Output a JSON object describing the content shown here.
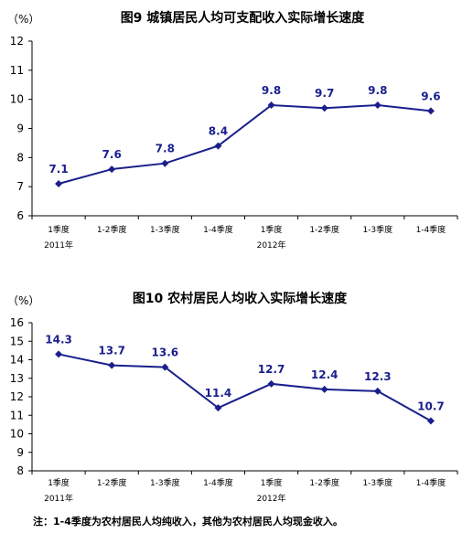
{
  "chart_data": [
    {
      "type": "line",
      "title": "图9  城镇居民人均可支配收入实际增长速度",
      "unit_label": "（%）",
      "categories": [
        "1季度",
        "1-2季度",
        "1-3季度",
        "1-4季度",
        "1季度",
        "1-2季度",
        "1-3季度",
        "1-4季度"
      ],
      "year_labels": [
        {
          "label": "2011年",
          "under_index": 0
        },
        {
          "label": "2012年",
          "under_index": 4
        }
      ],
      "series": [
        {
          "values": [
            7.1,
            7.6,
            7.8,
            8.4,
            9.8,
            9.7,
            9.8,
            9.6
          ]
        }
      ],
      "data_labels": [
        "7.1",
        "7.6",
        "7.8",
        "8.4",
        "9.8",
        "9.7",
        "9.8",
        "9.6"
      ],
      "ylim": [
        6,
        12
      ],
      "yticks": [
        6,
        7,
        8,
        9,
        10,
        11,
        12
      ],
      "color": "#1a1f8c",
      "grid": false,
      "legend": "none"
    },
    {
      "type": "line",
      "title": "图10  农村居民人均收入实际增长速度",
      "unit_label": "（%）",
      "categories": [
        "1季度",
        "1-2季度",
        "1-3季度",
        "1-4季度",
        "1季度",
        "1-2季度",
        "1-3季度",
        "1-4季度"
      ],
      "year_labels": [
        {
          "label": "2011年",
          "under_index": 0
        },
        {
          "label": "2012年",
          "under_index": 4
        }
      ],
      "series": [
        {
          "values": [
            14.3,
            13.7,
            13.6,
            11.4,
            12.7,
            12.4,
            12.3,
            10.7
          ]
        }
      ],
      "data_labels": [
        "14.3",
        "13.7",
        "13.6",
        "11.4",
        "12.7",
        "12.4",
        "12.3",
        "10.7"
      ],
      "ylim": [
        8,
        16
      ],
      "yticks": [
        8,
        9,
        10,
        11,
        12,
        13,
        14,
        15,
        16
      ],
      "color": "#1a1f8c",
      "grid": false,
      "legend": "none"
    }
  ],
  "footnote": "注：1-4季度为农村居民人均纯收入，其他为农村居民人均现金收入。"
}
